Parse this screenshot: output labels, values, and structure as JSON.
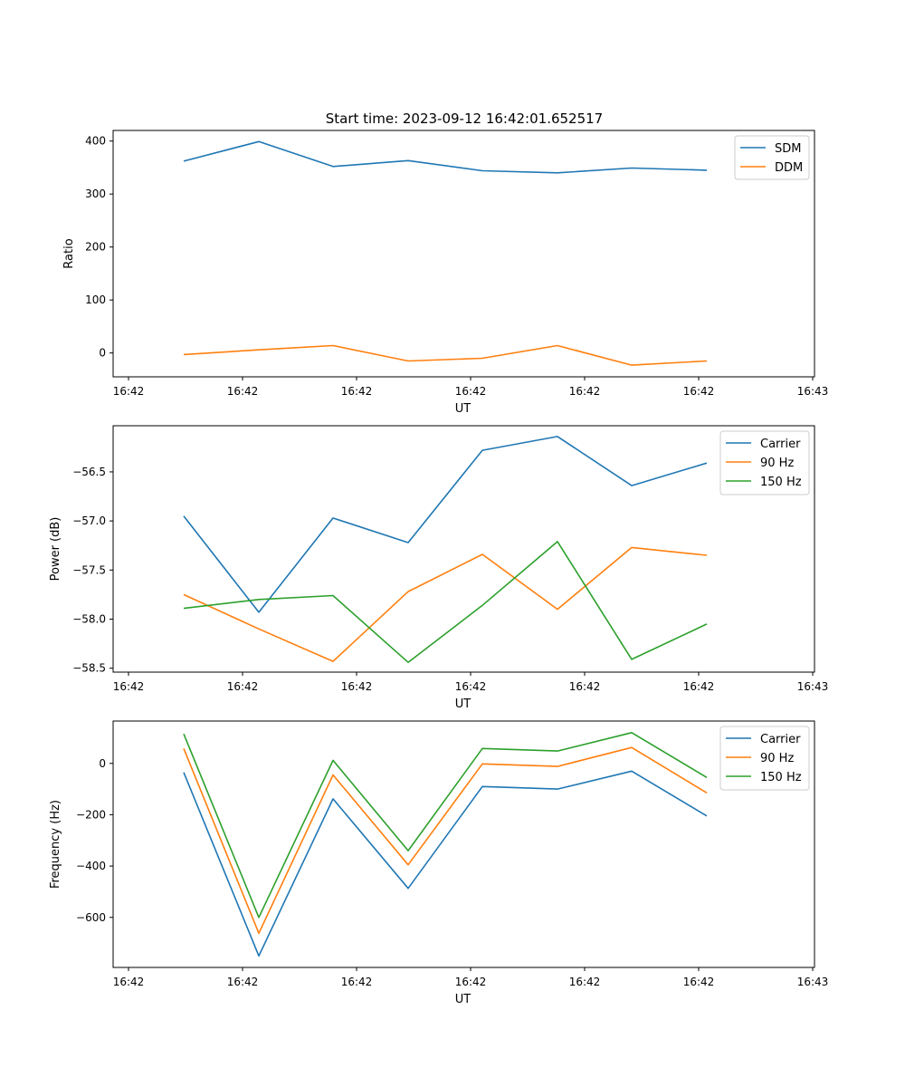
{
  "figure_title": "Start time: 2023-09-12 16:42:01.652517",
  "colors": {
    "blue": "#1f77b4",
    "orange": "#ff7f0e",
    "green": "#2ca02c"
  },
  "chart_data": [
    {
      "type": "line",
      "title": "Start time: 2023-09-12 16:42:01.652517",
      "xlabel": "UT",
      "ylabel": "Ratio",
      "x_tick_labels": [
        "16:42",
        "16:42",
        "16:42",
        "16:42",
        "16:42",
        "16:42",
        "16:43"
      ],
      "y_ticks": [
        0,
        100,
        200,
        300,
        400
      ],
      "ylim": [
        -45,
        420
      ],
      "legend_position": "top-right",
      "series": [
        {
          "name": "SDM",
          "color": "#1f77b4",
          "values": [
            362,
            399,
            352,
            363,
            344,
            340,
            349,
            345
          ]
        },
        {
          "name": "DDM",
          "color": "#ff7f0e",
          "values": [
            -3,
            6,
            14,
            -15,
            -10,
            14,
            -23,
            -15
          ]
        }
      ]
    },
    {
      "type": "line",
      "title": "",
      "xlabel": "UT",
      "ylabel": "Power (dB)",
      "x_tick_labels": [
        "16:42",
        "16:42",
        "16:42",
        "16:42",
        "16:42",
        "16:42",
        "16:43"
      ],
      "y_ticks": [
        -56.5,
        -57.0,
        -57.5,
        -58.0,
        -58.5
      ],
      "y_tick_labels": [
        "−56.5",
        "−57.0",
        "−57.5",
        "−58.0",
        "−58.5"
      ],
      "ylim": [
        -58.54,
        -56.03
      ],
      "legend_position": "top-right",
      "series": [
        {
          "name": "Carrier",
          "color": "#1f77b4",
          "values": [
            -56.95,
            -57.93,
            -56.97,
            -57.22,
            -56.28,
            -56.14,
            -56.64,
            -56.41
          ]
        },
        {
          "name": "90 Hz",
          "color": "#ff7f0e",
          "values": [
            -57.75,
            -58.1,
            -58.43,
            -57.72,
            -57.34,
            -57.9,
            -57.27,
            -57.35
          ]
        },
        {
          "name": "150 Hz",
          "color": "#2ca02c",
          "values": [
            -57.89,
            -57.8,
            -57.76,
            -58.44,
            -57.86,
            -57.21,
            -58.41,
            -58.05
          ]
        }
      ]
    },
    {
      "type": "line",
      "title": "",
      "xlabel": "UT",
      "ylabel": "Frequency (Hz)",
      "x_tick_labels": [
        "16:42",
        "16:42",
        "16:42",
        "16:42",
        "16:42",
        "16:42",
        "16:43"
      ],
      "y_ticks": [
        0,
        -200,
        -400,
        -600
      ],
      "y_tick_labels": [
        "0",
        "−200",
        "−400",
        "−600"
      ],
      "ylim": [
        -795,
        165
      ],
      "legend_position": "top-right",
      "series": [
        {
          "name": "Carrier",
          "color": "#1f77b4",
          "values": [
            -35,
            -750,
            -138,
            -487,
            -90,
            -100,
            -30,
            -205
          ]
        },
        {
          "name": "90 Hz",
          "color": "#ff7f0e",
          "values": [
            58,
            -662,
            -45,
            -395,
            -2,
            -12,
            62,
            -115
          ]
        },
        {
          "name": "150 Hz",
          "color": "#2ca02c",
          "values": [
            115,
            -600,
            12,
            -340,
            58,
            48,
            120,
            -55
          ]
        }
      ]
    }
  ]
}
